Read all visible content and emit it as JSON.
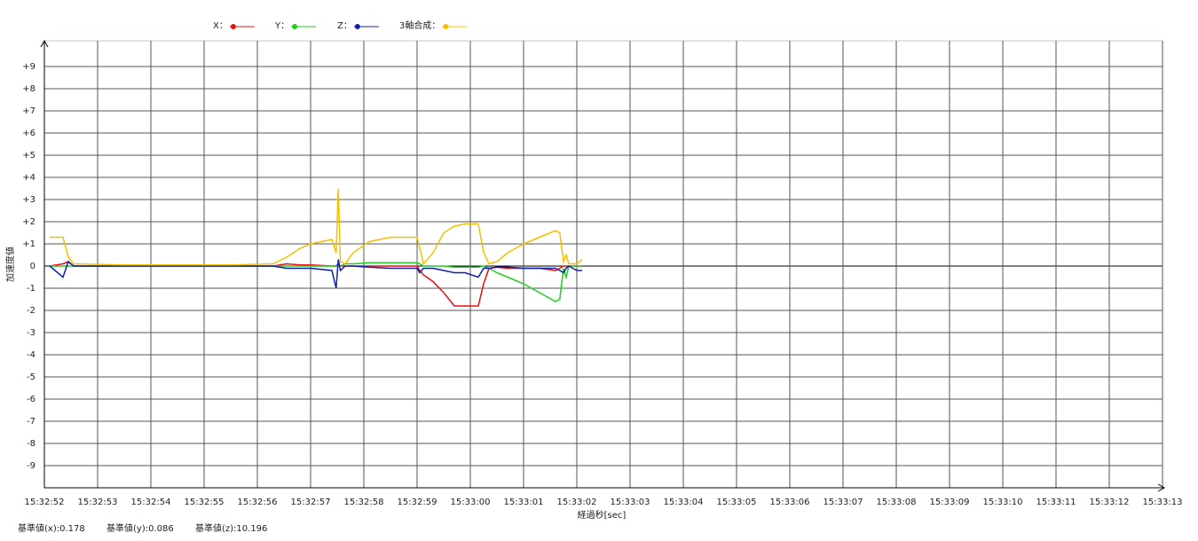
{
  "chart_data": {
    "type": "line",
    "y_label": "加速度値",
    "x_label": "経過秒[sec]",
    "annotations": [
      "基準値(x):0.178",
      "基準値(y):0.086",
      "基準値(z):10.196"
    ],
    "xlim": [
      "15:32:52",
      "15:33:13"
    ],
    "xticks": [
      "15:32:52",
      "15:32:53",
      "15:32:54",
      "15:32:55",
      "15:32:56",
      "15:32:57",
      "15:32:58",
      "15:32:59",
      "15:33:00",
      "15:33:01",
      "15:33:02",
      "15:33:03",
      "15:33:04",
      "15:33:05",
      "15:33:06",
      "15:33:07",
      "15:33:08",
      "15:33:09",
      "15:33:10",
      "15:33:11",
      "15:33:12",
      "15:33:13"
    ],
    "ylim": [
      -10,
      10
    ],
    "yticks": [
      {
        "value": 9,
        "label": "+9"
      },
      {
        "value": 8,
        "label": "+8"
      },
      {
        "value": 7,
        "label": "+7"
      },
      {
        "value": 6,
        "label": "+6"
      },
      {
        "value": 5,
        "label": "+5"
      },
      {
        "value": 4,
        "label": "+4"
      },
      {
        "value": 3,
        "label": "+3"
      },
      {
        "value": 2,
        "label": "+2"
      },
      {
        "value": 1,
        "label": "+1"
      },
      0,
      -1,
      -2,
      -3,
      -4,
      -5,
      -6,
      -7,
      -8,
      -9
    ],
    "grid": true,
    "x": [
      "15:32:52.10",
      "15:32:52.35",
      "15:32:52.45",
      "15:32:52.55",
      "15:32:53.50",
      "15:32:54.50",
      "15:32:55.50",
      "15:32:56.30",
      "15:32:56.55",
      "15:32:56.80",
      "15:32:57.00",
      "15:32:57.40",
      "15:32:57.48",
      "15:32:57.52",
      "15:32:57.56",
      "15:32:57.65",
      "15:32:57.80",
      "15:32:58.10",
      "15:32:58.50",
      "15:32:59.00",
      "15:32:59.05",
      "15:32:59.12",
      "15:32:59.30",
      "15:32:59.50",
      "15:32:59.70",
      "15:32:59.90",
      "15:33:00.15",
      "15:33:00.25",
      "15:33:00.35",
      "15:33:00.50",
      "15:33:00.70",
      "15:33:01.00",
      "15:33:01.30",
      "15:33:01.60",
      "15:33:01.68",
      "15:33:01.75",
      "15:33:01.80",
      "15:33:01.85",
      "15:33:02.00",
      "15:33:02.10"
    ],
    "series": [
      {
        "name": "X：",
        "color": "#e8100e",
        "values": [
          0,
          0.1,
          0.2,
          0,
          0,
          0,
          0,
          0,
          0.1,
          0.05,
          0.05,
          0,
          0,
          0.1,
          0,
          0,
          0,
          0,
          0,
          0,
          -0.2,
          -0.4,
          -0.7,
          -1.2,
          -1.8,
          -1.8,
          -1.8,
          -0.8,
          -0.1,
          -0.05,
          -0.1,
          -0.1,
          -0.1,
          -0.2,
          -0.1,
          0,
          0,
          0,
          0,
          0
        ]
      },
      {
        "name": "Y：",
        "color": "#22cc22",
        "values": [
          0,
          0,
          0,
          0,
          0,
          0,
          0,
          0,
          0,
          0,
          0,
          0,
          0,
          0,
          0,
          0.1,
          0.1,
          0.15,
          0.15,
          0.15,
          0.1,
          0,
          0,
          0,
          -0.05,
          -0.05,
          -0.05,
          0,
          -0.1,
          -0.3,
          -0.5,
          -0.8,
          -1.2,
          -1.6,
          -1.5,
          -0.1,
          -0.5,
          0,
          0,
          0
        ]
      },
      {
        "name": "Z：",
        "color": "#1020b0",
        "values": [
          0,
          -0.5,
          0.2,
          0,
          0,
          0,
          0,
          0,
          -0.1,
          -0.1,
          -0.1,
          -0.2,
          -1.0,
          0.3,
          -0.2,
          0,
          0,
          -0.05,
          -0.1,
          -0.1,
          -0.3,
          -0.1,
          -0.1,
          -0.2,
          -0.3,
          -0.3,
          -0.5,
          -0.1,
          -0.1,
          -0.05,
          -0.05,
          -0.1,
          -0.1,
          -0.1,
          -0.2,
          -0.3,
          -0.1,
          0,
          -0.2,
          -0.2
        ]
      },
      {
        "name": "3軸合成：",
        "color": "#f5c000",
        "values": [
          1.3,
          1.3,
          0.4,
          0.1,
          0.05,
          0.05,
          0.05,
          0.1,
          0.4,
          0.8,
          1.0,
          1.2,
          0.6,
          3.5,
          0.2,
          0.1,
          0.6,
          1.1,
          1.3,
          1.3,
          0.8,
          0.1,
          0.6,
          1.5,
          1.8,
          1.9,
          1.9,
          0.6,
          0.1,
          0.2,
          0.6,
          1.0,
          1.3,
          1.6,
          1.5,
          0.2,
          0.5,
          0.1,
          0.1,
          0.3
        ]
      }
    ]
  }
}
